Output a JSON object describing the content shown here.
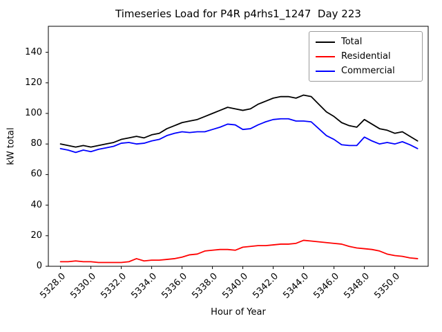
{
  "chart_data": {
    "type": "line",
    "title": "Timeseries Load for P4R p4rhs1_1247  Day 223",
    "xlabel": "Hour of Year",
    "ylabel": "kW total",
    "xlim": [
      5327.2,
      5352.2
    ],
    "ylim": [
      0,
      157
    ],
    "grid": false,
    "legend_position": "upper right",
    "xticks": {
      "values": [
        5328,
        5330,
        5332,
        5334,
        5336,
        5338,
        5340,
        5342,
        5344,
        5346,
        5348,
        5350
      ],
      "labels": [
        "5328.0",
        "5330.0",
        "5332.0",
        "5334.0",
        "5336.0",
        "5338.0",
        "5340.0",
        "5342.0",
        "5344.0",
        "5346.0",
        "5348.0",
        "5350.0"
      ]
    },
    "yticks": {
      "values": [
        0,
        20,
        40,
        60,
        80,
        100,
        120,
        140
      ],
      "labels": [
        "0",
        "20",
        "40",
        "60",
        "80",
        "100",
        "120",
        "140"
      ]
    },
    "x": [
      5328.0,
      5328.5,
      5329.0,
      5329.5,
      5330.0,
      5330.5,
      5331.0,
      5331.5,
      5332.0,
      5332.5,
      5333.0,
      5333.5,
      5334.0,
      5334.5,
      5335.0,
      5335.5,
      5336.0,
      5336.5,
      5337.0,
      5337.5,
      5338.0,
      5338.5,
      5339.0,
      5339.5,
      5340.0,
      5340.5,
      5341.0,
      5341.5,
      5342.0,
      5342.5,
      5343.0,
      5343.5,
      5344.0,
      5344.5,
      5345.0,
      5345.5,
      5346.0,
      5346.5,
      5347.0,
      5347.5,
      5348.0,
      5348.5,
      5349.0,
      5349.5,
      5350.0,
      5350.5,
      5351.0,
      5351.5
    ],
    "series": [
      {
        "name": "Total",
        "color": "#000000",
        "values": [
          80,
          79,
          78,
          79,
          78,
          79,
          80,
          81,
          83,
          84,
          85,
          84,
          86,
          87,
          90,
          92,
          94,
          95,
          96,
          98,
          100,
          102,
          104,
          103,
          102,
          103,
          106,
          108,
          110,
          111,
          111,
          110,
          112,
          111,
          106,
          101,
          98,
          94,
          92,
          91,
          96,
          93,
          90,
          89,
          87,
          88,
          85,
          82
        ]
      },
      {
        "name": "Residential",
        "color": "#ff0000",
        "values": [
          3,
          3,
          3.5,
          3,
          3,
          2.5,
          2.5,
          2.5,
          2.5,
          3,
          5,
          3.5,
          4,
          4,
          4.5,
          5,
          6,
          7.5,
          8,
          10,
          10.5,
          11,
          11,
          10.5,
          12.5,
          13,
          13.5,
          13.5,
          14,
          14.5,
          14.5,
          15,
          17,
          16.5,
          16,
          15.5,
          15,
          14.5,
          13,
          12,
          11.5,
          11,
          10,
          8,
          7,
          6.5,
          5.5,
          5
        ]
      },
      {
        "name": "Commercial",
        "color": "#0000ff",
        "values": [
          77,
          76,
          74.5,
          76,
          75,
          76.5,
          77.5,
          78.5,
          80.5,
          81,
          80,
          80.5,
          82,
          83,
          85.5,
          87,
          88,
          87.5,
          88,
          88,
          89.5,
          91,
          93,
          92.5,
          89.5,
          90,
          92.5,
          94.5,
          96,
          96.5,
          96.5,
          95,
          95,
          94.5,
          90,
          85.5,
          83,
          79.5,
          79,
          79,
          84.5,
          82,
          80,
          81,
          80,
          81.5,
          79.5,
          77
        ]
      }
    ]
  }
}
